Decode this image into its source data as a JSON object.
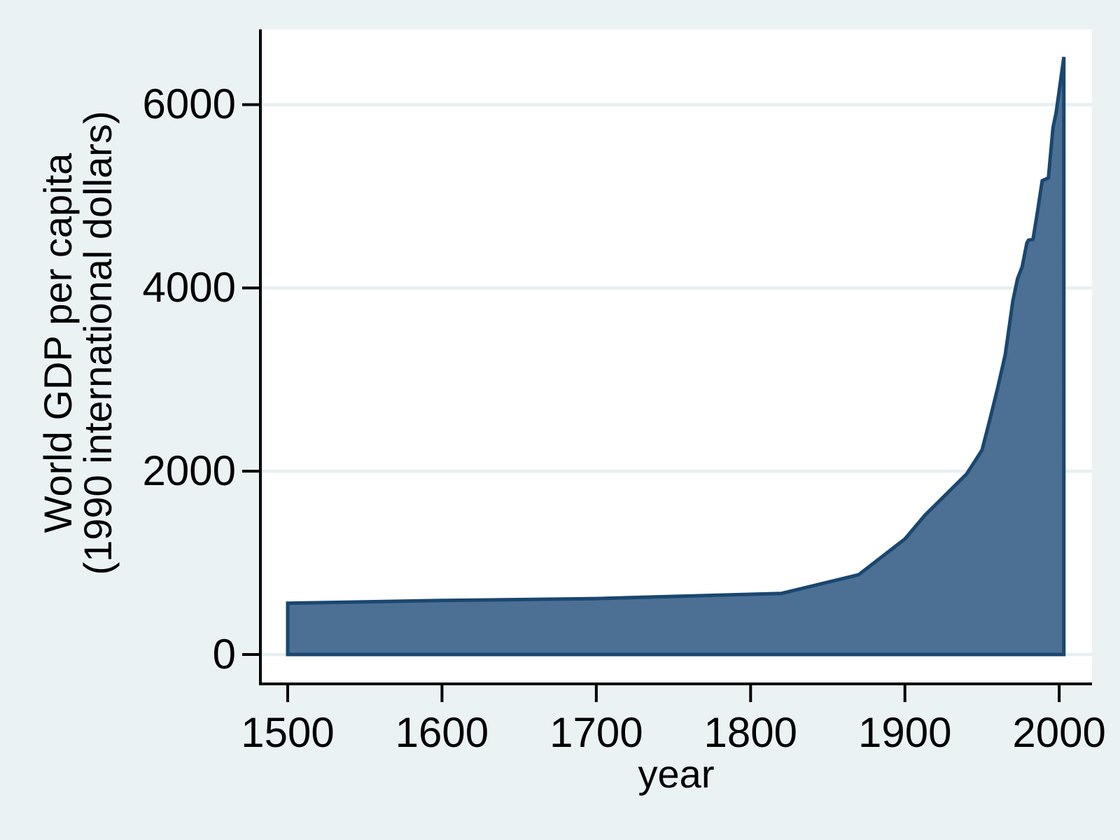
{
  "chart_data": {
    "type": "area",
    "title": "",
    "xlabel": "year",
    "ylabel_line1": "World GDP per capita",
    "ylabel_line2": "(1990 international dollars)",
    "x_ticks": [
      1500,
      1600,
      1700,
      1800,
      1900,
      2000
    ],
    "y_ticks": [
      0,
      2000,
      4000,
      6000
    ],
    "xlim": [
      1482,
      2021
    ],
    "ylim": [
      0,
      6700
    ],
    "grid": true,
    "legend": "none",
    "series": [
      {
        "name": "World GDP per capita (1990 international dollars)",
        "points": [
          [
            1500,
            560
          ],
          [
            1600,
            590
          ],
          [
            1700,
            610
          ],
          [
            1820,
            667
          ],
          [
            1870,
            870
          ],
          [
            1900,
            1260
          ],
          [
            1913,
            1520
          ],
          [
            1940,
            1970
          ],
          [
            1950,
            2230
          ],
          [
            1955,
            2560
          ],
          [
            1960,
            2900
          ],
          [
            1965,
            3270
          ],
          [
            1970,
            3860
          ],
          [
            1973,
            4100
          ],
          [
            1976,
            4230
          ],
          [
            1979,
            4490
          ],
          [
            1980,
            4520
          ],
          [
            1983,
            4530
          ],
          [
            1986,
            4840
          ],
          [
            1989,
            5170
          ],
          [
            1991,
            5185
          ],
          [
            1993,
            5200
          ],
          [
            1996,
            5750
          ],
          [
            1998,
            5910
          ],
          [
            2000,
            6150
          ],
          [
            2003,
            6520
          ]
        ]
      }
    ],
    "colors": {
      "background": "#EAF2F3",
      "plot_background": "#FFFFFF",
      "gridline": "#E6EFF1",
      "axis": "#000000",
      "text": "#000000",
      "area_fill": "#4C7094",
      "area_border": "#1A476F"
    }
  }
}
